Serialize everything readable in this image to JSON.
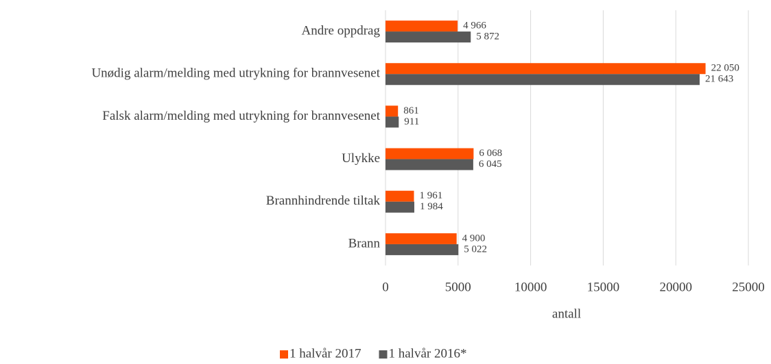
{
  "chart_data": {
    "type": "barh",
    "categories": [
      "Andre oppdrag",
      "Unødig alarm/melding med utrykning for brannvesenet",
      "Falsk alarm/melding med utrykning for brannvesenet",
      "Ulykke",
      "Brannhindrende tiltak",
      "Brann"
    ],
    "series": [
      {
        "name": "1 halvår 2017",
        "color": "#fe5000",
        "values": [
          4966,
          22050,
          861,
          6068,
          1961,
          4900
        ],
        "value_labels": [
          "4 966",
          "22 050",
          "861",
          "6 068",
          "1 961",
          "4 900"
        ]
      },
      {
        "name": "1 halvår 2016*",
        "color": "#595959",
        "values": [
          5872,
          21643,
          911,
          6045,
          1984,
          5022
        ],
        "value_labels": [
          "5 872",
          "21 643",
          "911",
          "6 045",
          "1 984",
          "5 022"
        ]
      }
    ],
    "xlabel": "antall",
    "xlim": [
      0,
      25000
    ],
    "xticks": [
      0,
      5000,
      10000,
      15000,
      20000,
      25000
    ],
    "grid": true,
    "legend": "bottom"
  }
}
